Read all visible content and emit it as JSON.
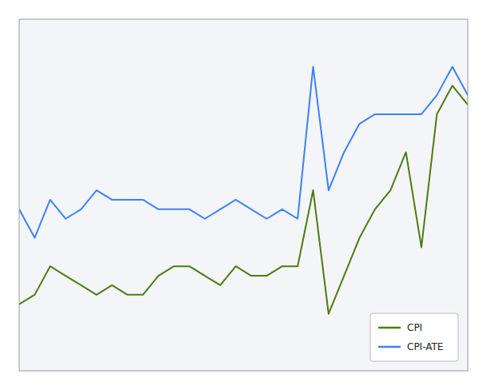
{
  "chart_data": {
    "type": "line",
    "categories": [
      null,
      null,
      null,
      null,
      null,
      null,
      null,
      null,
      null,
      null,
      null,
      null,
      null,
      null,
      null,
      null,
      null,
      null,
      null,
      null,
      null,
      null,
      null,
      null,
      null,
      null,
      null,
      null,
      null,
      null
    ],
    "series": [
      {
        "name": "CPI",
        "color": "#4d7c0f",
        "values": [
          1.2,
          1.3,
          1.6,
          1.5,
          1.4,
          1.3,
          1.4,
          1.3,
          1.3,
          1.5,
          1.6,
          1.6,
          1.5,
          1.4,
          1.6,
          1.5,
          1.5,
          1.6,
          1.6,
          2.4,
          1.1,
          1.5,
          1.9,
          2.2,
          2.4,
          2.8,
          1.8,
          3.2,
          3.5,
          3.3
        ]
      },
      {
        "name": "CPI-ATE",
        "color": "#3b82f6",
        "values": [
          2.2,
          1.9,
          2.3,
          2.1,
          2.2,
          2.4,
          2.3,
          2.3,
          2.3,
          2.2,
          2.2,
          2.2,
          2.1,
          2.2,
          2.3,
          2.2,
          2.1,
          2.2,
          2.1,
          3.7,
          2.4,
          2.8,
          3.1,
          3.2,
          3.2,
          3.2,
          3.2,
          3.4,
          3.7,
          3.4
        ]
      }
    ],
    "ylim": [
      0.5,
      4.2
    ],
    "yticks": [],
    "grid": false,
    "tick_labels": false,
    "legend": "lower right"
  }
}
